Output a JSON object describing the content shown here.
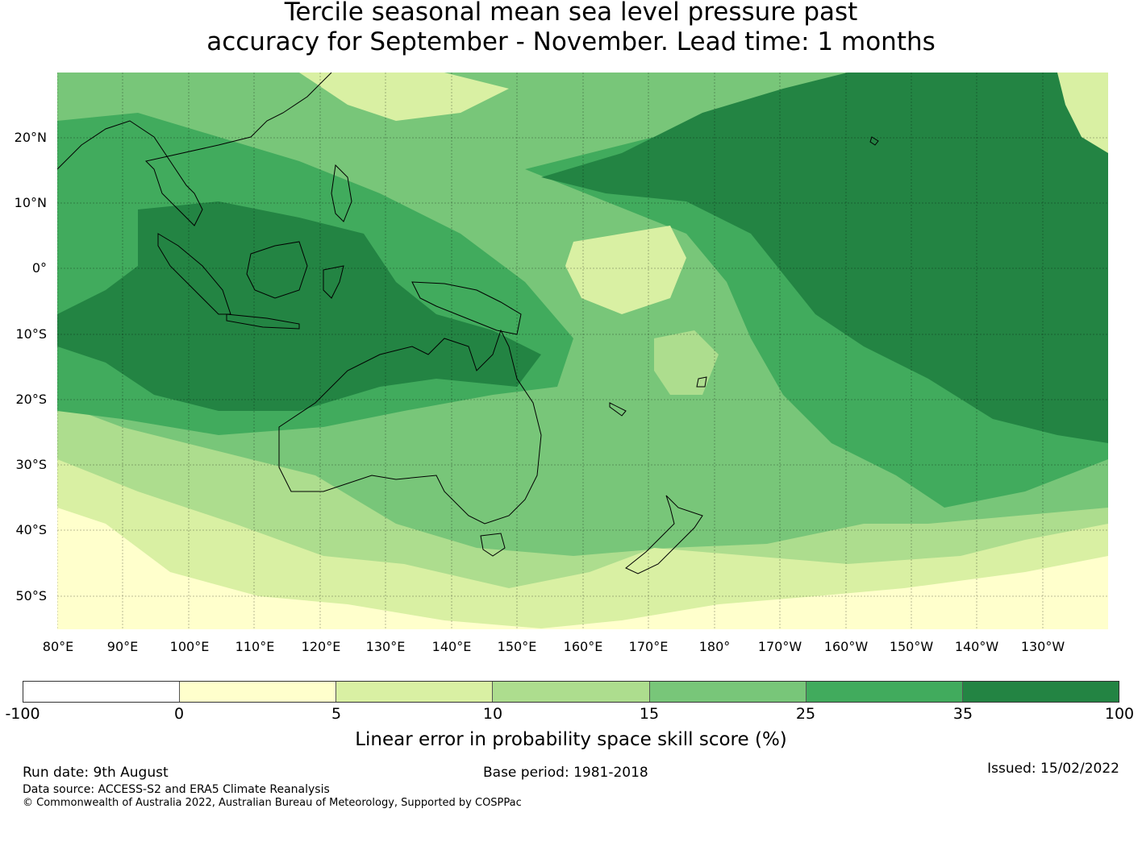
{
  "title": {
    "line1": "Tercile seasonal mean sea level pressure past",
    "line2": "accuracy for September - November. Lead time: 1 months"
  },
  "map": {
    "lat_labels": [
      "20°N",
      "10°N",
      "0°",
      "10°S",
      "20°S",
      "30°S",
      "40°S",
      "50°S"
    ],
    "lon_labels": [
      "80°E",
      "90°E",
      "100°E",
      "110°E",
      "120°E",
      "130°E",
      "140°E",
      "150°E",
      "160°E",
      "170°E",
      "180°",
      "170°W",
      "160°W",
      "150°W",
      "140°W",
      "130°W"
    ],
    "lat_range": [
      "55°S",
      "30°N"
    ],
    "lon_range": [
      "80°E",
      "120°W"
    ],
    "gridlines": true
  },
  "colorbar": {
    "ticks": [
      "-100",
      "0",
      "5",
      "10",
      "15",
      "25",
      "35",
      "100"
    ],
    "colors": [
      "#ffffff",
      "#ffffcc",
      "#d9f0a3",
      "#addd8e",
      "#78c679",
      "#41ab5d",
      "#238443"
    ],
    "label": "Linear error in probability space skill score (%)"
  },
  "footer": {
    "run_date": "Run date: 9th August",
    "base_period": "Base period: 1981-2018",
    "issued": "Issued: 15/02/2022",
    "data_source": "Data source: ACCESS-S2 and ERA5 Climate Reanalysis",
    "copyright": "© Commonwealth of Australia 2022, Australian Bureau of Meteorology, Supported by COSPPac"
  }
}
